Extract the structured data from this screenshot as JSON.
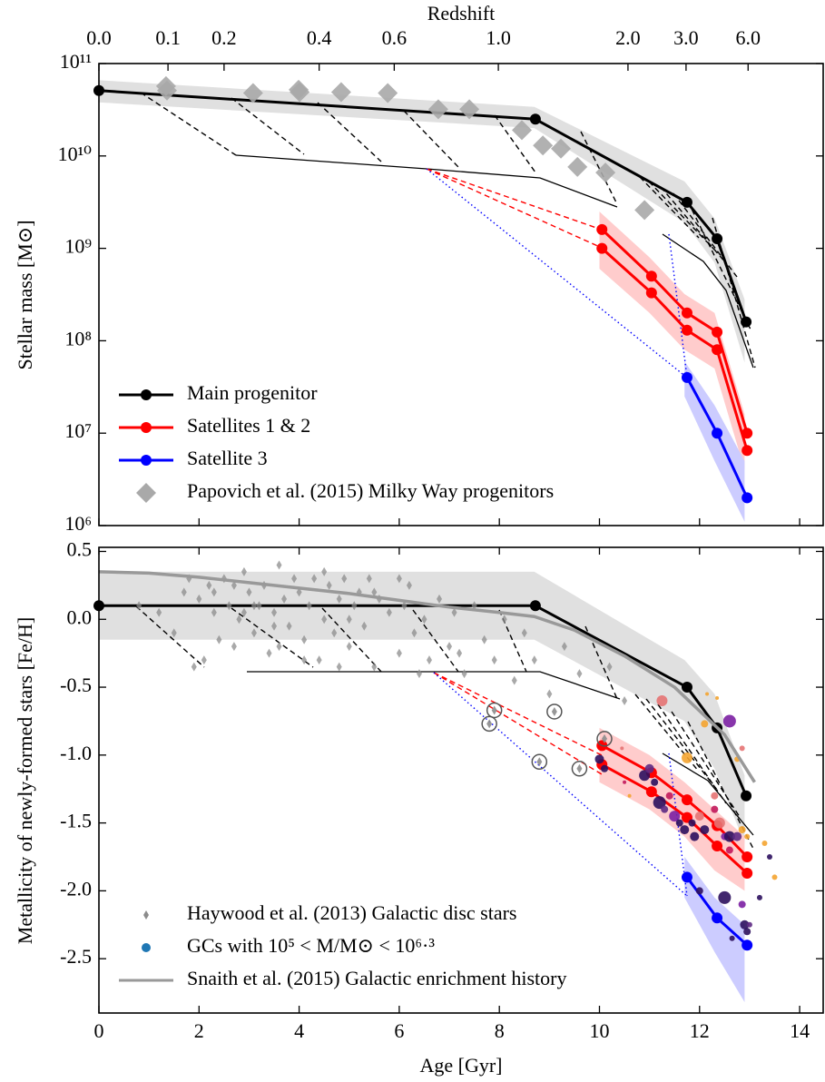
{
  "chart_data": [
    {
      "type": "line",
      "x2_label": "Redshift",
      "y_label": "Stellar mass [M⊙]",
      "xlim": [
        0,
        14.47
      ],
      "ylim": [
        1000000,
        100000000000
      ],
      "log_y": true,
      "x2ticks": [
        {
          "value": 0,
          "label": "0.0"
        },
        {
          "value": 1.38,
          "label": "0.1"
        },
        {
          "value": 2.5,
          "label": "0.2"
        },
        {
          "value": 4.4,
          "label": "0.4"
        },
        {
          "value": 5.9,
          "label": "0.6"
        },
        {
          "value": 7.98,
          "label": "1.0"
        },
        {
          "value": 10.57,
          "label": "2.0"
        },
        {
          "value": 11.73,
          "label": "3.0"
        },
        {
          "value": 12.97,
          "label": "6.0"
        }
      ],
      "yticks": [
        {
          "value": 1000000,
          "label": "10⁶"
        },
        {
          "value": 10000000,
          "label": "10⁷"
        },
        {
          "value": 100000000,
          "label": "10⁸"
        },
        {
          "value": 1000000000,
          "label": "10⁹"
        },
        {
          "value": 10000000000,
          "label": "10¹⁰"
        },
        {
          "value": 100000000000,
          "label": "10¹¹"
        }
      ],
      "legend": "lower left",
      "series": [
        {
          "name": "Main progenitor",
          "kind": "line",
          "marker": "circle",
          "color": "#000000",
          "band": {
            "x": [
              0,
              8.7,
              11.7,
              12.3,
              12.9
            ],
            "upper": [
              66000000000,
              34000000000,
              5300000000,
              2100000000,
              280000000
            ],
            "lower": [
              38000000000,
              20000000000,
              1900000000,
              700000000,
              58000000
            ],
            "color": "#e0e0e0"
          },
          "lines": [
            {
              "x": [
                0,
                8.72,
                11.75,
                12.35,
                12.93
              ],
              "values": [
                51000000000,
                25000000000,
                3150000000,
                1270000000,
                160000000
              ]
            }
          ]
        },
        {
          "name": "Satellites 1 & 2",
          "kind": "line",
          "marker": "circle",
          "color": "#ff0000",
          "band": {
            "x": [
              10,
              11,
              11.7,
              12.3,
              12.9
            ],
            "upper": [
              2500000000,
              800000000,
              320000000,
              200000000,
              16000000
            ],
            "lower": [
              600000000,
              200000000,
              80000000,
              50000000,
              4000000
            ],
            "color": "#ffcccc"
          },
          "lines": [
            {
              "x": [
                10.05,
                11.04,
                11.75,
                12.35,
                12.95
              ],
              "values": [
                1600000000,
                500000000,
                200000000,
                124000000,
                10000000
              ]
            },
            {
              "x": [
                10.05,
                11.04,
                11.75,
                12.35,
                12.95
              ],
              "values": [
                1000000000,
                330000000,
                130000000,
                80000000,
                6500000
              ]
            }
          ]
        },
        {
          "name": "Satellite 3",
          "kind": "line",
          "marker": "circle",
          "color": "#0000ff",
          "band": {
            "x": [
              11.7,
              12.3,
              12.9
            ],
            "upper": [
              60000000,
              20000000,
              5000000
            ],
            "lower": [
              25000000,
              5000000,
              1100000
            ],
            "color": "#ccccff"
          },
          "lines": [
            {
              "x": [
                11.75,
                12.35,
                12.95
              ],
              "values": [
                40000000,
                10000000,
                2000000
              ]
            }
          ]
        },
        {
          "name": "Papovich et al. (2015) Milky Way progenitors",
          "kind": "scatter",
          "marker": "diamond",
          "color": "#a9a9a9",
          "x": [
            1.34,
            1.36,
            3.08,
            3.99,
            4.01,
            4.84,
            5.77,
            6.78,
            7.4,
            8.45,
            8.87,
            9.23,
            9.56,
            10.12,
            10.9
          ],
          "values": [
            57000000000,
            51000000000,
            48000000000,
            52000000000,
            49000000000,
            49000000000,
            48000000000,
            32000000000,
            32000000000,
            19000000000,
            13000000000,
            12000000000,
            7600000000,
            6600000000,
            2600000000
          ]
        }
      ]
    },
    {
      "type": "line",
      "x_label": "Age [Gyr]",
      "y_label": "Metallicity of newly-formed stars [Fe/H]",
      "xlim": [
        0,
        14.47
      ],
      "ylim": [
        -2.9,
        0.53
      ],
      "xticks": [
        0,
        2,
        4,
        6,
        8,
        10,
        12,
        14
      ],
      "yticks": [
        -2.5,
        {
          "value": -2,
          "label": "-2.0"
        },
        -1.5,
        {
          "value": -1,
          "label": "-1.0"
        },
        -0.5,
        {
          "value": 0,
          "label": "0.0"
        },
        0.5
      ],
      "legend": "lower left",
      "series": [
        {
          "kind": "line",
          "marker": "circle",
          "color": "#000000",
          "band": {
            "x": [
              0,
              8.7,
              11.7,
              12.3,
              12.9
            ],
            "upper": [
              0.35,
              0.35,
              -0.3,
              -0.55,
              -1.15
            ],
            "lower": [
              -0.15,
              -0.15,
              -0.75,
              -1.1,
              -1.65
            ],
            "color": "#e0e0e0"
          },
          "lines": [
            {
              "x": [
                0,
                8.72,
                11.75,
                12.35,
                12.93
              ],
              "values": [
                0.1,
                0.1,
                -0.5,
                -0.8,
                -1.3
              ]
            }
          ]
        },
        {
          "kind": "line",
          "marker": "circle",
          "color": "#ff0000",
          "band": {
            "x": [
              10,
              11,
              11.7,
              12.3,
              12.9
            ],
            "upper": [
              -0.8,
              -1.0,
              -1.2,
              -1.4,
              -1.6
            ],
            "lower": [
              -1.2,
              -1.4,
              -1.6,
              -1.85,
              -2.0
            ],
            "color": "#ffcccc"
          },
          "lines": [
            {
              "x": [
                10.05,
                11.04,
                11.75,
                12.35,
                12.95
              ],
              "values": [
                -0.93,
                -1.13,
                -1.33,
                -1.52,
                -1.75
              ]
            },
            {
              "x": [
                10.05,
                11.04,
                11.75,
                12.35,
                12.95
              ],
              "values": [
                -1.07,
                -1.27,
                -1.46,
                -1.67,
                -1.87
              ]
            }
          ]
        },
        {
          "kind": "line",
          "marker": "circle",
          "color": "#0000ff",
          "band": {
            "x": [
              11.7,
              12.3,
              12.9
            ],
            "upper": [
              -1.75,
              -2.05,
              -2.25
            ],
            "lower": [
              -2.05,
              -2.45,
              -2.82
            ],
            "color": "#ccccff"
          },
          "lines": [
            {
              "x": [
                11.75,
                12.35,
                12.95
              ],
              "values": [
                -1.9,
                -2.2,
                -2.4
              ]
            }
          ]
        },
        {
          "name": "Haywood et al. (2013) Galactic disc stars",
          "kind": "scatter",
          "marker": "small-diamond",
          "color": "#8c8c8c",
          "x": [
            0.8,
            1.2,
            1.5,
            1.7,
            1.9,
            2.0,
            2.1,
            2.2,
            2.3,
            2.4,
            2.5,
            2.6,
            2.7,
            2.8,
            2.9,
            3.0,
            3.1,
            3.2,
            3.3,
            3.4,
            3.5,
            3.6,
            3.7,
            3.8,
            3.9,
            4.0,
            4.1,
            4.2,
            4.3,
            4.4,
            4.5,
            4.6,
            4.7,
            4.8,
            4.9,
            5.0,
            5.1,
            5.2,
            5.3,
            5.4,
            5.5,
            5.6,
            5.8,
            6.0,
            6.1,
            6.2,
            6.3,
            6.5,
            6.6,
            6.8,
            7.0,
            7.1,
            7.3,
            7.5,
            7.7,
            7.9,
            8.1,
            8.3,
            8.5,
            8.7,
            9.0,
            9.3,
            9.6,
            10.2,
            10.5,
            1.8,
            2.3,
            2.7,
            3.1,
            3.5,
            4.1,
            4.5,
            5.0,
            5.5,
            6.0,
            6.4,
            7.2,
            3.6,
            4.8,
            2.9
          ],
          "values": [
            0.1,
            0.05,
            -0.1,
            0.2,
            -0.35,
            0.15,
            -0.3,
            0.25,
            0.05,
            -0.15,
            0.3,
            0.1,
            -0.2,
            0.0,
            0.35,
            0.2,
            -0.1,
            0.1,
            0.25,
            -0.25,
            0.05,
            0.4,
            0.15,
            -0.05,
            0.3,
            0.2,
            -0.15,
            0.1,
            0.3,
            -0.3,
            0.0,
            0.25,
            -0.1,
            0.15,
            0.3,
            -0.2,
            0.1,
            0.2,
            -0.05,
            0.3,
            -0.35,
            0.15,
            0.05,
            -0.25,
            0.1,
            0.25,
            -0.1,
            0.0,
            -0.3,
            0.15,
            -0.2,
            0.05,
            -0.4,
            0.1,
            -0.15,
            -0.3,
            0.0,
            -0.45,
            -0.1,
            -0.3,
            -0.55,
            -0.2,
            -0.4,
            -0.35,
            -0.6,
            0.3,
            0.2,
            0.25,
            0.1,
            -0.05,
            -0.3,
            0.35,
            0.0,
            0.2,
            0.3,
            -0.4,
            -0.25,
            -0.2,
            -0.35,
            0.05
          ]
        },
        {
          "kind": "scatter",
          "marker": "circled-diamond",
          "color": "#8c8c8c",
          "x": [
            7.8,
            7.9,
            8.8,
            9.1,
            9.6,
            10.1
          ],
          "values": [
            -0.77,
            -0.67,
            -1.05,
            -0.68,
            -1.1,
            -0.88
          ]
        },
        {
          "name": "GCs with 10⁵ < M/M⊙ < 10⁶·³",
          "kind": "scatter",
          "marker": "sized-circle",
          "color": "#1f77b4",
          "x": [
            10.0,
            10.1,
            10.5,
            10.6,
            10.9,
            11.0,
            11.1,
            11.2,
            11.3,
            11.4,
            11.5,
            11.6,
            11.7,
            11.85,
            11.9,
            12.0,
            12.1,
            12.3,
            12.4,
            12.5,
            12.6,
            12.75,
            12.85,
            12.6,
            12.0,
            12.5,
            12.85,
            12.9,
            12.95,
            13.0,
            12.65,
            13.2,
            13.4,
            13.5,
            13.3,
            12.6,
            12.1,
            11.75,
            12.35,
            12.15,
            12.75,
            12.85,
            12.3,
            11.25,
            10.45,
            12.95
          ],
          "values": [
            -1.03,
            -1.1,
            -1.2,
            -1.3,
            -1.15,
            -1.1,
            -1.2,
            -1.35,
            -1.4,
            -1.3,
            -1.45,
            -1.5,
            -1.55,
            -1.5,
            -1.6,
            -1.45,
            -1.55,
            -1.4,
            -1.5,
            -1.6,
            -1.6,
            -1.6,
            -1.55,
            -1.7,
            -2.0,
            -2.05,
            -2.1,
            -2.25,
            -2.3,
            -2.25,
            -2.35,
            -2.05,
            -1.75,
            -1.9,
            -1.65,
            -0.75,
            -0.77,
            -1.02,
            -0.58,
            -0.55,
            -1.03,
            -0.95,
            -1.3,
            -0.6,
            -0.95,
            -1.6
          ],
          "sizes": [
            5,
            4,
            2,
            2,
            6,
            5,
            4,
            7,
            4,
            4,
            6,
            4,
            5,
            4,
            5,
            5,
            5,
            4,
            6,
            4,
            6,
            5,
            4,
            4,
            4,
            7,
            4,
            5,
            4,
            3,
            3,
            3,
            3,
            3,
            3,
            7,
            4,
            6,
            2,
            2,
            3,
            3,
            4,
            6,
            2,
            3
          ],
          "colors": [
            "#2c0f5e",
            "#2c0f5e",
            "#c2185b",
            "#f4a430",
            "#2c0f5e",
            "#5e2a84",
            "#2c0f5e",
            "#2c0f5e",
            "#5e2a84",
            "#c2185b",
            "#7b1fa2",
            "#2c0f5e",
            "#2c0f5e",
            "#2c0f5e",
            "#2c0f5e",
            "#e57373",
            "#2c0f5e",
            "#c2185b",
            "#e57373",
            "#7b1fa2",
            "#2c0f5e",
            "#5e2a84",
            "#f4a430",
            "#c2185b",
            "#2c0f5e",
            "#2c0f5e",
            "#7b1fa2",
            "#2c0f5e",
            "#2c0f5e",
            "#5e2a84",
            "#2c0f5e",
            "#2c0f5e",
            "#2c0f5e",
            "#f4a430",
            "#f4a430",
            "#7b1fa2",
            "#f4a430",
            "#f4a430",
            "#f4a430",
            "#f4a430",
            "#f4a430",
            "#e57373",
            "#e57373",
            "#e57373",
            "#e57373",
            "#f4a430"
          ]
        },
        {
          "name": "Snaith et al. (2015) Galactic enrichment history",
          "kind": "line",
          "color": "#999999",
          "lines": [
            {
              "x": [
                0,
                1,
                2,
                3,
                4,
                5,
                6,
                7,
                8,
                8.7,
                9.5,
                10.5,
                11.5,
                12.5,
                13.1
              ],
              "values": [
                0.35,
                0.34,
                0.31,
                0.27,
                0.23,
                0.19,
                0.14,
                0.09,
                0.05,
                0.02,
                -0.08,
                -0.27,
                -0.5,
                -0.85,
                -1.2
              ]
            }
          ]
        }
      ]
    }
  ]
}
